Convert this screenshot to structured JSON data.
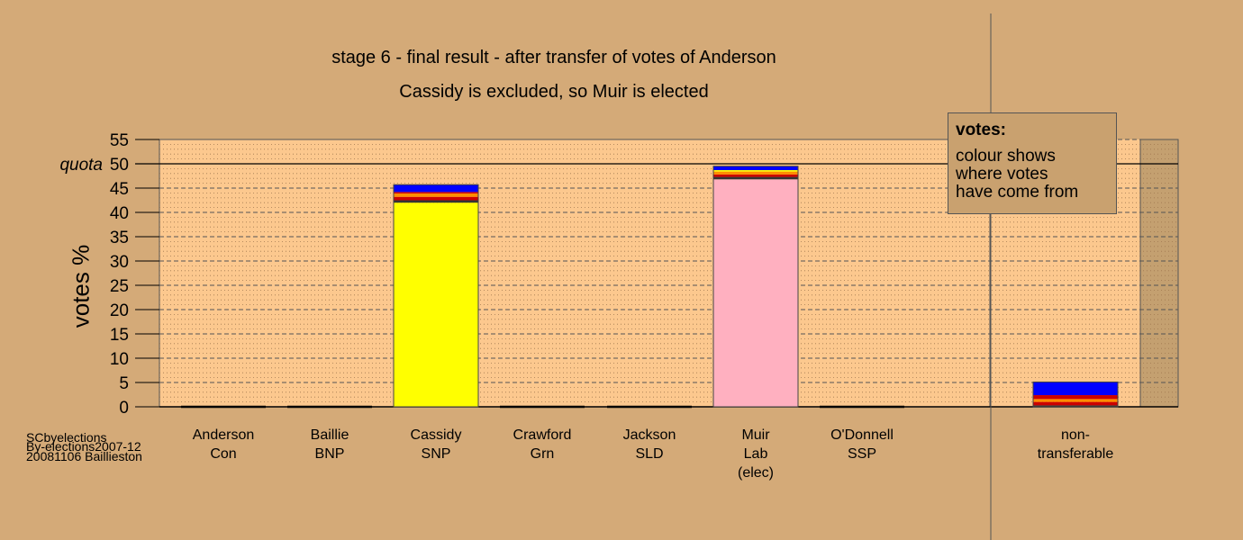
{
  "chart_data": {
    "type": "bar",
    "title": "stage 6 - final result - after transfer of votes of Anderson",
    "subtitle": "Cassidy is excluded, so Muir is elected",
    "ylabel": "votes %",
    "ylim": [
      0,
      55
    ],
    "yticks": [
      "0",
      "5",
      "10",
      "15",
      "20",
      "25",
      "30",
      "35",
      "40",
      "45",
      "50",
      "55"
    ],
    "quota_label": "quota",
    "quota_value": 50,
    "categories": [
      {
        "name": "Anderson",
        "party": "Con",
        "note": ""
      },
      {
        "name": "Baillie",
        "party": "BNP",
        "note": ""
      },
      {
        "name": "Cassidy",
        "party": "SNP",
        "note": ""
      },
      {
        "name": "Crawford",
        "party": "Grn",
        "note": ""
      },
      {
        "name": "Jackson",
        "party": "SLD",
        "note": ""
      },
      {
        "name": "Muir",
        "party": "Lab",
        "note": "(elec)"
      },
      {
        "name": "O'Donnell",
        "party": "SSP",
        "note": ""
      },
      {
        "name": "non-",
        "party": "transferable",
        "note": ""
      }
    ],
    "bars": [
      [],
      [],
      [
        {
          "color": "#ffff00",
          "value": 42.0
        },
        {
          "color": "#333333",
          "value": 0.5
        },
        {
          "color": "#cc0000",
          "value": 0.7
        },
        {
          "color": "#ff8c00",
          "value": 0.7
        },
        {
          "color": "#cc0000",
          "value": 0.3
        },
        {
          "color": "#0000ff",
          "value": 1.5
        }
      ],
      [],
      [],
      [
        {
          "color": "#ffb0c0",
          "value": 46.8
        },
        {
          "color": "#333333",
          "value": 0.5
        },
        {
          "color": "#cc0000",
          "value": 0.5
        },
        {
          "color": "#ff8c00",
          "value": 0.6
        },
        {
          "color": "#ffff00",
          "value": 0.3
        },
        {
          "color": "#0000ff",
          "value": 0.8
        }
      ],
      [],
      [
        {
          "color": "#333333",
          "value": 0.3
        },
        {
          "color": "#cc0000",
          "value": 0.7
        },
        {
          "color": "#ff8c00",
          "value": 0.6
        },
        {
          "color": "#cc0000",
          "value": 0.8
        },
        {
          "color": "#0000ff",
          "value": 2.7
        }
      ]
    ],
    "grid": true,
    "legend": {
      "title": "votes:",
      "lines": [
        "colour shows",
        "where votes",
        "have come from"
      ]
    }
  },
  "source": [
    "SCbyelections",
    "By-elections2007-12",
    "20081106 Baillieston"
  ],
  "colors": {
    "background": "#d4aa78",
    "plot_area": "#fcc88e"
  }
}
